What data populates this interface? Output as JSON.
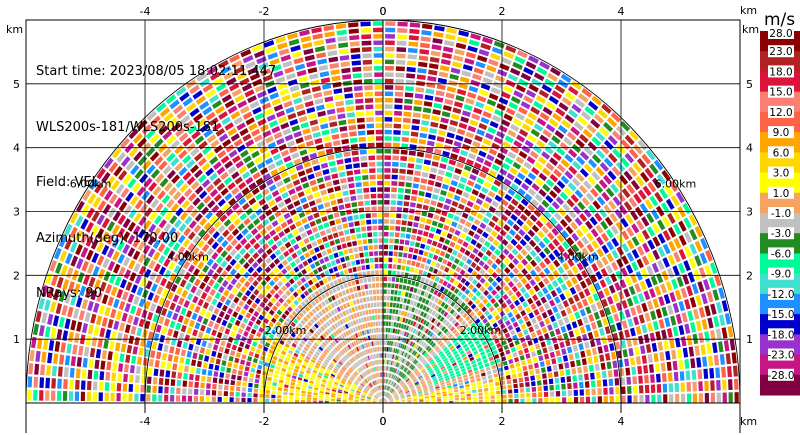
{
  "header": {
    "start_time": "Start time: 2023/08/05 18:02:11.447",
    "instrument": "WLS200s-181/WLS200s-181",
    "field": "Field: VEL",
    "azimuth": "Azimuth(deg): 170.00",
    "nrays": "NRays: 90"
  },
  "chart_data": {
    "type": "heatmap",
    "subtype": "polar-rhi-scan",
    "x_unit_label": "km",
    "y_unit_label": "km",
    "xlim": [
      -6,
      6
    ],
    "ylim": [
      0,
      6
    ],
    "x_ticks": [
      -4,
      -2,
      0,
      2,
      4
    ],
    "y_ticks": [
      1,
      2,
      3,
      4,
      5
    ],
    "range_rings_km": [
      2,
      4,
      6
    ],
    "range_ring_labels": [
      "2.00km",
      "4.00km",
      "6.00km"
    ],
    "max_range_km": 6,
    "grid": true,
    "colorbar": {
      "title": "m/s",
      "ticks": [
        "28.0",
        "23.0",
        "18.0",
        "15.0",
        "12.0",
        "9.0",
        "6.0",
        "3.0",
        "1.0",
        "-1.0",
        "-3.0",
        "-6.0",
        "-9.0",
        "-12.0",
        "-15.0",
        "-18.0",
        "-23.0",
        "-28.0"
      ],
      "colors": [
        "#8b0000",
        "#b22222",
        "#dc143c",
        "#fa8072",
        "#ff6347",
        "#ffa500",
        "#ffd700",
        "#ffff00",
        "#f4a460",
        "#c0c0c0",
        "#228b22",
        "#00fa9a",
        "#40e0d0",
        "#1e90ff",
        "#0000cd",
        "#9932cc",
        "#c71585",
        "#800040"
      ]
    }
  }
}
